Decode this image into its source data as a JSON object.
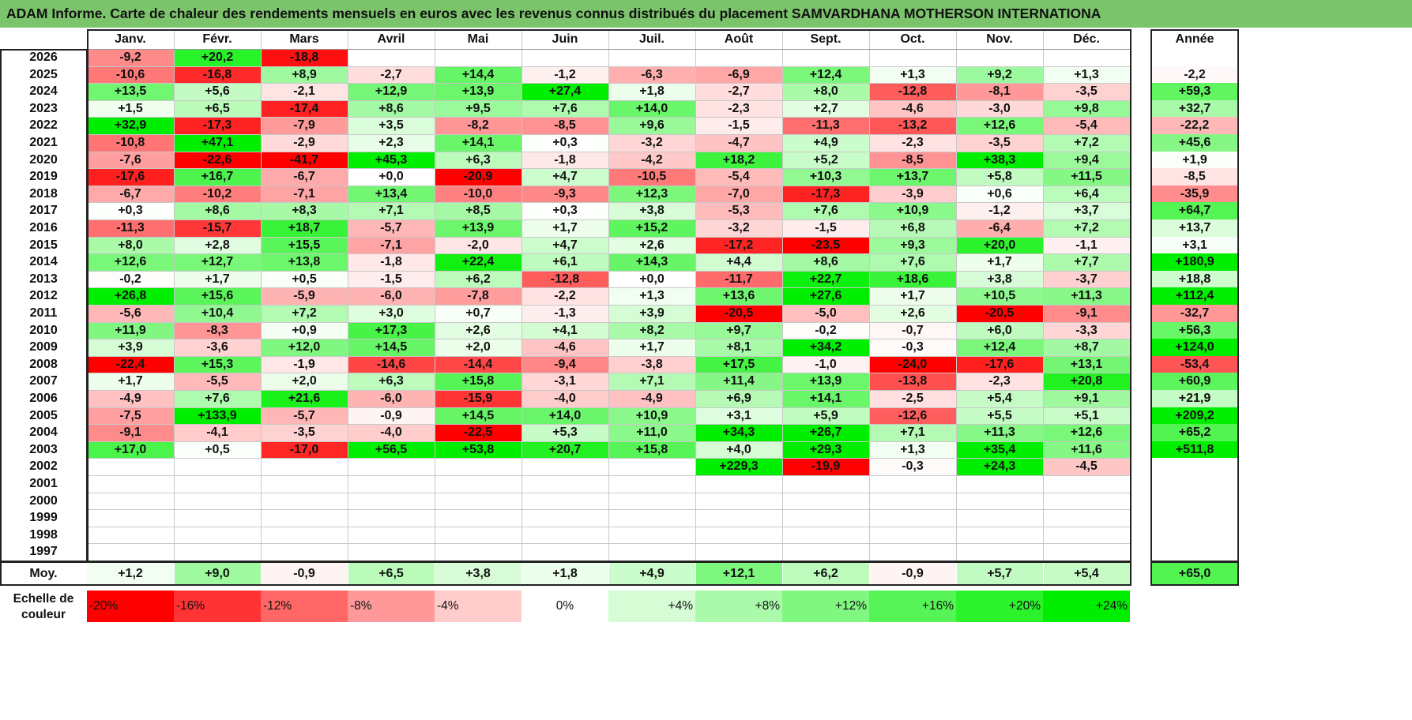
{
  "title": "ADAM Informe. Carte de chaleur des rendements mensuels en euros avec les revenus connus distribués du placement SAMVARDHANA MOTHERSON INTERNATIONA",
  "chart_data": {
    "type": "heatmap",
    "title": "ADAM Informe. Carte de chaleur des rendements mensuels en euros avec les revenus connus distribués du placement SAMVARDHANA MOTHERSON INTERNATIONA",
    "columns": [
      "Janv.",
      "Févr.",
      "Mars",
      "Avril",
      "Mai",
      "Juin",
      "Juil.",
      "Août",
      "Sept.",
      "Oct.",
      "Nov.",
      "Déc."
    ],
    "year_column_label": "Année",
    "rows": [
      {
        "year": "2026",
        "months": [
          "-9,2",
          "+20,2",
          "-18,8",
          "",
          "",
          "",
          "",
          "",
          "",
          "",
          "",
          ""
        ],
        "annual": ""
      },
      {
        "year": "2025",
        "months": [
          "-10,6",
          "-16,8",
          "+8,9",
          "-2,7",
          "+14,4",
          "-1,2",
          "-6,3",
          "-6,9",
          "+12,4",
          "+1,3",
          "+9,2",
          "+1,3"
        ],
        "annual": "-2,2"
      },
      {
        "year": "2024",
        "months": [
          "+13,5",
          "+5,6",
          "-2,1",
          "+12,9",
          "+13,9",
          "+27,4",
          "+1,8",
          "-2,7",
          "+8,0",
          "-12,8",
          "-8,1",
          "-3,5"
        ],
        "annual": "+59,3"
      },
      {
        "year": "2023",
        "months": [
          "+1,5",
          "+6,5",
          "-17,4",
          "+8,6",
          "+9,5",
          "+7,6",
          "+14,0",
          "-2,3",
          "+2,7",
          "-4,6",
          "-3,0",
          "+9,8"
        ],
        "annual": "+32,7"
      },
      {
        "year": "2022",
        "months": [
          "+32,9",
          "-17,3",
          "-7,9",
          "+3,5",
          "-8,2",
          "-8,5",
          "+9,6",
          "-1,5",
          "-11,3",
          "-13,2",
          "+12,6",
          "-5,4"
        ],
        "annual": "-22,2"
      },
      {
        "year": "2021",
        "months": [
          "-10,8",
          "+47,1",
          "-2,9",
          "+2,3",
          "+14,1",
          "+0,3",
          "-3,2",
          "-4,7",
          "+4,9",
          "-2,3",
          "-3,5",
          "+7,2"
        ],
        "annual": "+45,6"
      },
      {
        "year": "2020",
        "months": [
          "-7,6",
          "-22,6",
          "-41,7",
          "+45,3",
          "+6,3",
          "-1,8",
          "-4,2",
          "+18,2",
          "+5,2",
          "-8,5",
          "+38,3",
          "+9,4"
        ],
        "annual": "+1,9"
      },
      {
        "year": "2019",
        "months": [
          "-17,6",
          "+16,7",
          "-6,7",
          "+0,0",
          "-20,9",
          "+4,7",
          "-10,5",
          "-5,4",
          "+10,3",
          "+13,7",
          "+5,8",
          "+11,5"
        ],
        "annual": "-8,5"
      },
      {
        "year": "2018",
        "months": [
          "-6,7",
          "-10,2",
          "-7,1",
          "+13,4",
          "-10,0",
          "-9,3",
          "+12,3",
          "-7,0",
          "-17,3",
          "-3,9",
          "+0,6",
          "+6,4"
        ],
        "annual": "-35,9"
      },
      {
        "year": "2017",
        "months": [
          "+0,3",
          "+8,6",
          "+8,3",
          "+7,1",
          "+8,5",
          "+0,3",
          "+3,8",
          "-5,3",
          "+7,6",
          "+10,9",
          "-1,2",
          "+3,7"
        ],
        "annual": "+64,7"
      },
      {
        "year": "2016",
        "months": [
          "-11,3",
          "-15,7",
          "+18,7",
          "-5,7",
          "+13,9",
          "+1,7",
          "+15,2",
          "-3,2",
          "-1,5",
          "+6,8",
          "-6,4",
          "+7,2"
        ],
        "annual": "+13,7"
      },
      {
        "year": "2015",
        "months": [
          "+8,0",
          "+2,8",
          "+15,5",
          "-7,1",
          "-2,0",
          "+4,7",
          "+2,6",
          "-17,2",
          "-23,5",
          "+9,3",
          "+20,0",
          "-1,1"
        ],
        "annual": "+3,1"
      },
      {
        "year": "2014",
        "months": [
          "+12,6",
          "+12,7",
          "+13,8",
          "-1,8",
          "+22,4",
          "+6,1",
          "+14,3",
          "+4,4",
          "+8,6",
          "+7,6",
          "+1,7",
          "+7,7"
        ],
        "annual": "+180,9"
      },
      {
        "year": "2013",
        "months": [
          "-0,2",
          "+1,7",
          "+0,5",
          "-1,5",
          "+6,2",
          "-12,8",
          "+0,0",
          "-11,7",
          "+22,7",
          "+18,6",
          "+3,8",
          "-3,7"
        ],
        "annual": "+18,8"
      },
      {
        "year": "2012",
        "months": [
          "+26,8",
          "+15,6",
          "-5,9",
          "-6,0",
          "-7,8",
          "-2,2",
          "+1,3",
          "+13,6",
          "+27,6",
          "+1,7",
          "+10,5",
          "+11,3"
        ],
        "annual": "+112,4"
      },
      {
        "year": "2011",
        "months": [
          "-5,6",
          "+10,4",
          "+7,2",
          "+3,0",
          "+0,7",
          "-1,3",
          "+3,9",
          "-20,5",
          "-5,0",
          "+2,6",
          "-20,5",
          "-9,1"
        ],
        "annual": "-32,7"
      },
      {
        "year": "2010",
        "months": [
          "+11,9",
          "-8,3",
          "+0,9",
          "+17,3",
          "+2,6",
          "+4,1",
          "+8,2",
          "+9,7",
          "-0,2",
          "-0,7",
          "+6,0",
          "-3,3"
        ],
        "annual": "+56,3"
      },
      {
        "year": "2009",
        "months": [
          "+3,9",
          "-3,6",
          "+12,0",
          "+14,5",
          "+2,0",
          "-4,6",
          "+1,7",
          "+8,1",
          "+34,2",
          "-0,3",
          "+12,4",
          "+8,7"
        ],
        "annual": "+124,0"
      },
      {
        "year": "2008",
        "months": [
          "-22,4",
          "+15,3",
          "-1,9",
          "-14,6",
          "-14,4",
          "-9,4",
          "-3,8",
          "+17,5",
          "-1,0",
          "-24,0",
          "-17,6",
          "+13,1"
        ],
        "annual": "-53,4"
      },
      {
        "year": "2007",
        "months": [
          "+1,7",
          "-5,5",
          "+2,0",
          "+6,3",
          "+15,8",
          "-3,1",
          "+7,1",
          "+11,4",
          "+13,9",
          "-13,8",
          "-2,3",
          "+20,8"
        ],
        "annual": "+60,9"
      },
      {
        "year": "2006",
        "months": [
          "-4,9",
          "+7,6",
          "+21,6",
          "-6,0",
          "-15,9",
          "-4,0",
          "-4,9",
          "+6,9",
          "+14,1",
          "-2,5",
          "+5,4",
          "+9,1"
        ],
        "annual": "+21,9"
      },
      {
        "year": "2005",
        "months": [
          "-7,5",
          "+133,9",
          "-5,7",
          "-0,9",
          "+14,5",
          "+14,0",
          "+10,9",
          "+3,1",
          "+5,9",
          "-12,6",
          "+5,5",
          "+5,1"
        ],
        "annual": "+209,2"
      },
      {
        "year": "2004",
        "months": [
          "-9,1",
          "-4,1",
          "-3,5",
          "-4,0",
          "-22,5",
          "+5,3",
          "+11,0",
          "+34,3",
          "+26,7",
          "+7,1",
          "+11,3",
          "+12,6"
        ],
        "annual": "+65,2"
      },
      {
        "year": "2003",
        "months": [
          "+17,0",
          "+0,5",
          "-17,0",
          "+56,5",
          "+53,8",
          "+20,7",
          "+15,8",
          "+4,0",
          "+29,3",
          "+1,3",
          "+35,4",
          "+11,6"
        ],
        "annual": "+511,8"
      },
      {
        "year": "2002",
        "months": [
          "",
          "",
          "",
          "",
          "",
          "",
          "",
          "+229,3",
          "-19,9",
          "-0,3",
          "+24,3",
          "-4,5"
        ],
        "annual": ""
      },
      {
        "year": "2001",
        "months": [
          "",
          "",
          "",
          "",
          "",
          "",
          "",
          "",
          "",
          "",
          "",
          ""
        ],
        "annual": ""
      },
      {
        "year": "2000",
        "months": [
          "",
          "",
          "",
          "",
          "",
          "",
          "",
          "",
          "",
          "",
          "",
          ""
        ],
        "annual": ""
      },
      {
        "year": "1999",
        "months": [
          "",
          "",
          "",
          "",
          "",
          "",
          "",
          "",
          "",
          "",
          "",
          ""
        ],
        "annual": ""
      },
      {
        "year": "1998",
        "months": [
          "",
          "",
          "",
          "",
          "",
          "",
          "",
          "",
          "",
          "",
          "",
          ""
        ],
        "annual": ""
      },
      {
        "year": "1997",
        "months": [
          "",
          "",
          "",
          "",
          "",
          "",
          "",
          "",
          "",
          "",
          "",
          ""
        ],
        "annual": ""
      }
    ],
    "average": {
      "label": "Moy.",
      "months": [
        "+1,2",
        "+9,0",
        "-0,9",
        "+6,5",
        "+3,8",
        "+1,8",
        "+4,9",
        "+12,1",
        "+6,2",
        "-0,9",
        "+5,7",
        "+5,4"
      ],
      "annual": "+65,0"
    },
    "color_scale": {
      "label_line1": "Echelle de",
      "label_line2": "couleur",
      "steps": [
        {
          "label": "-20%",
          "value": -20,
          "color": "#ff0000"
        },
        {
          "label": "-16%",
          "value": -16,
          "color": "#ff3333"
        },
        {
          "label": "-12%",
          "value": -12,
          "color": "#ff6666"
        },
        {
          "label": "-8%",
          "value": -8,
          "color": "#ff9999"
        },
        {
          "label": "-4%",
          "value": -4,
          "color": "#ffcccc"
        },
        {
          "label": "0%",
          "value": 0,
          "color": "#ffffff"
        },
        {
          "label": "+4%",
          "value": 4,
          "color": "#d5fcd5"
        },
        {
          "label": "+8%",
          "value": 8,
          "color": "#abf9ab"
        },
        {
          "label": "+12%",
          "value": 12,
          "color": "#80f780"
        },
        {
          "label": "+16%",
          "value": 16,
          "color": "#56f456"
        },
        {
          "label": "+20%",
          "value": 20,
          "color": "#2bf22b"
        },
        {
          "label": "+24%",
          "value": 24,
          "color": "#00ef00"
        }
      ]
    }
  }
}
